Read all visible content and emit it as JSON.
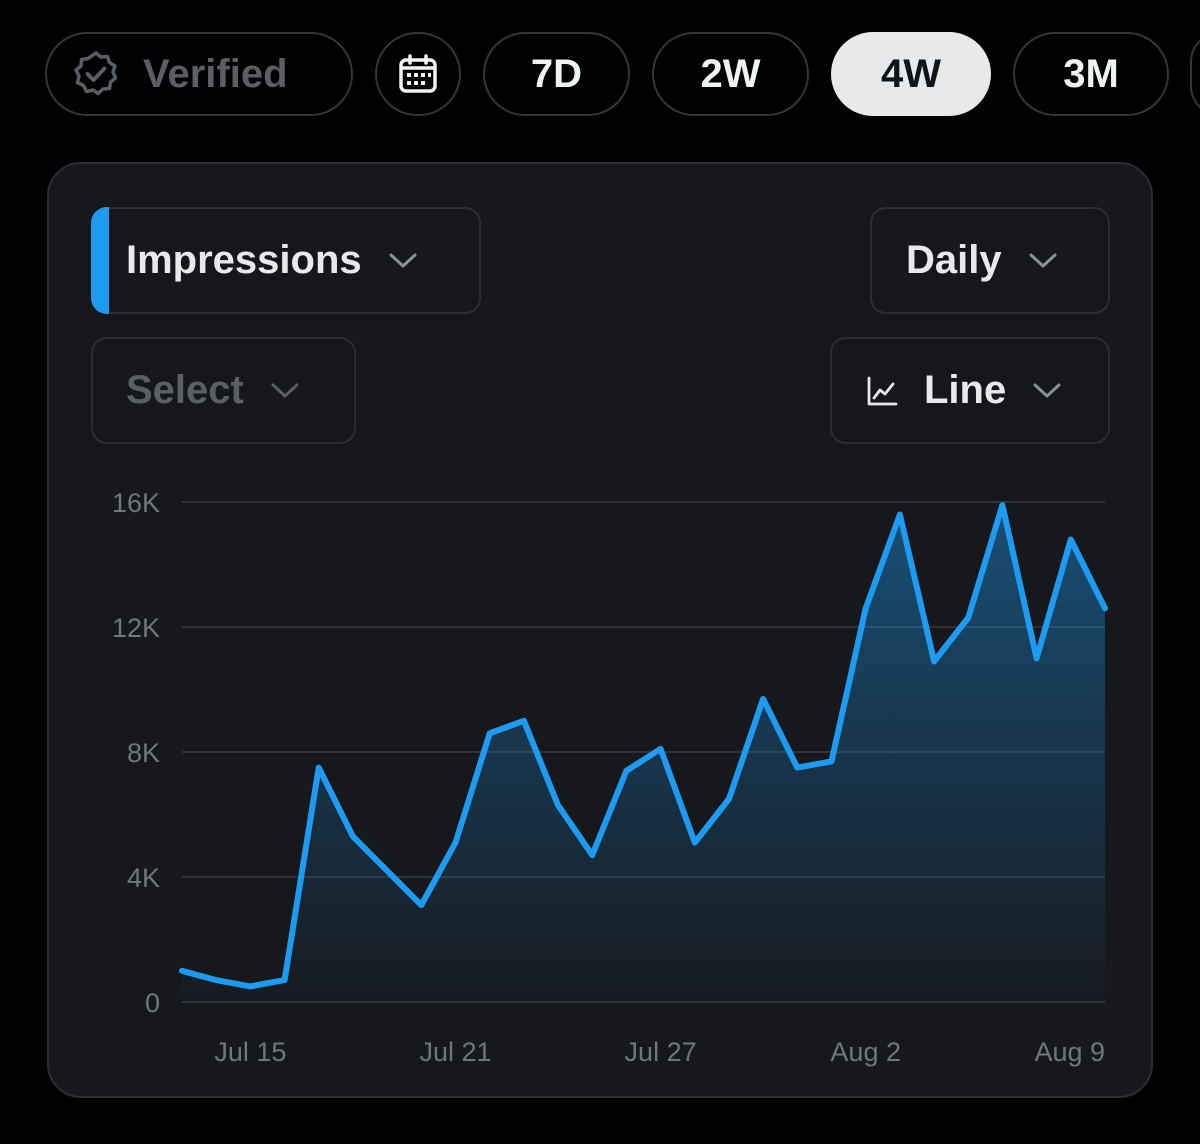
{
  "filters": {
    "verified_label": "Verified",
    "ranges": [
      "7D",
      "2W",
      "4W",
      "3M"
    ],
    "active_range": "4W"
  },
  "controls": {
    "metric": "Impressions",
    "interval": "Daily",
    "compare_placeholder": "Select",
    "chart_type": "Line"
  },
  "colors": {
    "accent": "#1d9bf0",
    "background": "#000000",
    "card": "#16181c",
    "active_pill": "#e7e9ea"
  },
  "icons": [
    "verified-badge-icon",
    "calendar-icon",
    "chevron-down-icon",
    "line-chart-icon"
  ],
  "chart_data": {
    "type": "area",
    "title": "",
    "xlabel": "",
    "ylabel": "",
    "x": [
      "Jul 13",
      "Jul 14",
      "Jul 15",
      "Jul 16",
      "Jul 17",
      "Jul 18",
      "Jul 19",
      "Jul 20",
      "Jul 21",
      "Jul 22",
      "Jul 23",
      "Jul 24",
      "Jul 25",
      "Jul 26",
      "Jul 27",
      "Jul 28",
      "Jul 29",
      "Jul 30",
      "Jul 31",
      "Aug 1",
      "Aug 2",
      "Aug 3",
      "Aug 4",
      "Aug 5",
      "Aug 6",
      "Aug 7",
      "Aug 8",
      "Aug 9"
    ],
    "series": [
      {
        "values": [
          1000,
          700,
          500,
          700,
          7500,
          5300,
          4200,
          3100,
          5100,
          8600,
          9000,
          6300,
          4700,
          7400,
          8100,
          5100,
          6500,
          9700,
          7500,
          7700,
          12600,
          15600,
          10900,
          12300,
          15900,
          11000,
          14800,
          12600
        ]
      }
    ],
    "tick_labels_x": [
      "Jul 15",
      "Jul 21",
      "Jul 27",
      "Aug 2",
      "Aug 9"
    ],
    "tick_labels_y": [
      "0",
      "4K",
      "8K",
      "12K",
      "16K"
    ],
    "ylim": [
      0,
      16000
    ],
    "grid": true,
    "legend": "none"
  }
}
